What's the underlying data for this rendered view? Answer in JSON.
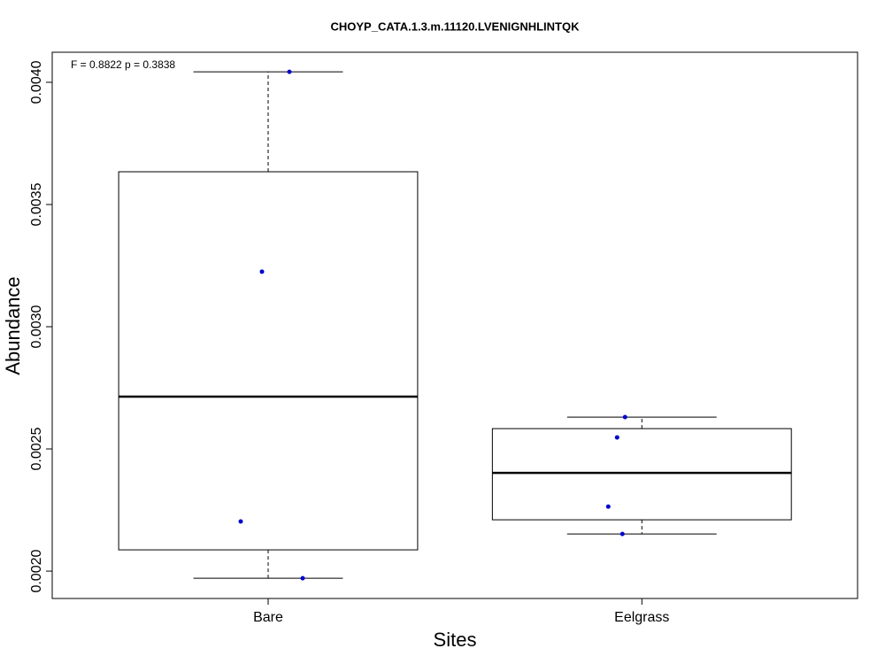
{
  "chart_data": {
    "type": "box",
    "title": "CHOYP_CATA.1.3.m.11120.LVENIGNHLINTQK",
    "annotation": "F = 0.8822 p = 0.3838",
    "x_label": "Sites",
    "y_label": "Abundance",
    "categories": [
      "Bare",
      "Eelgrass"
    ],
    "boxes": [
      {
        "whisker_low": 0.001971,
        "q1": 0.002087,
        "median": 0.002714,
        "q3": 0.003634,
        "whisker_high": 0.004043
      },
      {
        "whisker_low": 0.002152,
        "q1": 0.00221,
        "median": 0.002402,
        "q3": 0.002583,
        "whisker_high": 0.00263
      }
    ],
    "points": [
      [
        0.004043,
        0.003225,
        0.002203,
        0.001971
      ],
      [
        0.00263,
        0.002547,
        0.002264,
        0.002152
      ]
    ],
    "box_color": "#000000",
    "point_color": "#0000cd",
    "ylim": [
      0.001888,
      0.004123
    ],
    "yticks": [
      {
        "value": 0.002,
        "label": "0.0020"
      },
      {
        "value": 0.0025,
        "label": "0.0025"
      },
      {
        "value": 0.003,
        "label": "0.0030"
      },
      {
        "value": 0.0035,
        "label": "0.0035"
      },
      {
        "value": 0.004,
        "label": "0.0040"
      }
    ]
  }
}
